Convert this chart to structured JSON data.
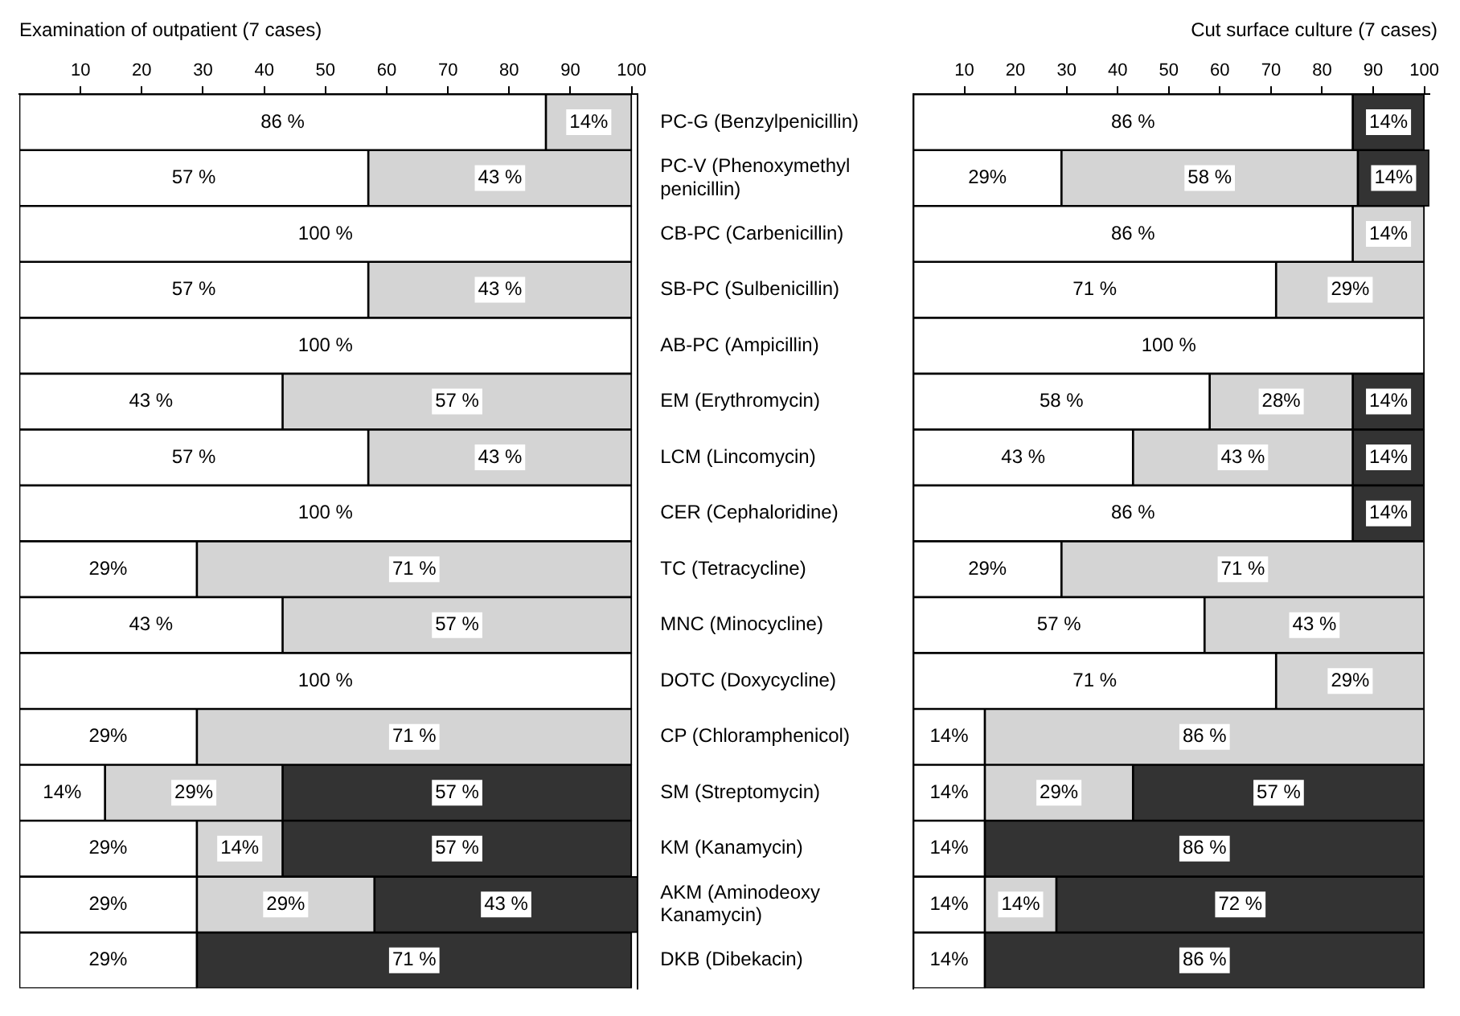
{
  "chart_data": [
    {
      "type": "bar",
      "orientation": "horizontal",
      "stacked": true,
      "title": "Examination of outpatient (7 cases)",
      "categories": [
        "PC-G (Benzylpenicillin)",
        "PC-V (Phenoxymethyl penicillin)",
        "CB-PC (Carbenicillin)",
        "SB-PC (Sulbenicillin)",
        "AB-PC (Ampicillin)",
        "EM (Erythromycin)",
        "LCM (Lincomycin)",
        "CER (Cephaloridine)",
        "TC (Tetracycline)",
        "MNC (Minocycline)",
        "DOTC (Doxycycline)",
        "CP (Chloramphenicol)",
        "SM (Streptomycin)",
        "KM (Kanamycin)",
        "AKM (Aminodeoxy Kanamycin)",
        "DKB (Dibekacin)"
      ],
      "series": [
        {
          "color": "#ffffff",
          "values": [
            86,
            57,
            100,
            57,
            100,
            43,
            57,
            100,
            29,
            43,
            100,
            29,
            14,
            29,
            29,
            29
          ],
          "value_labels": [
            "86 %",
            "57 %",
            "100 %",
            "57 %",
            "100 %",
            "43 %",
            "57 %",
            "100 %",
            "29%",
            "43 %",
            "100 %",
            "29%",
            "14%",
            "29%",
            "29%",
            "29%"
          ]
        },
        {
          "color": "#d4d4d4",
          "values": [
            14,
            43,
            0,
            43,
            0,
            57,
            43,
            0,
            71,
            57,
            0,
            71,
            29,
            14,
            29,
            0
          ],
          "value_labels": [
            "14%",
            "43 %",
            null,
            "43 %",
            null,
            "57 %",
            "43 %",
            null,
            "71 %",
            "57 %",
            null,
            "71 %",
            "29%",
            "14%",
            "29%",
            null
          ]
        },
        {
          "color": "#333333",
          "values": [
            0,
            0,
            0,
            0,
            0,
            0,
            0,
            0,
            0,
            0,
            0,
            0,
            57,
            57,
            43,
            71
          ],
          "value_labels": [
            null,
            null,
            null,
            null,
            null,
            null,
            null,
            null,
            null,
            null,
            null,
            null,
            "57 %",
            "57 %",
            "43 %",
            "71 %"
          ]
        }
      ],
      "xlim": [
        0,
        101
      ],
      "xticks": [
        10,
        20,
        30,
        40,
        50,
        60,
        70,
        80,
        90,
        100
      ],
      "grid": false
    },
    {
      "type": "bar",
      "orientation": "horizontal",
      "stacked": true,
      "title": "Cut surface culture (7 cases)",
      "categories": [
        null,
        null,
        null,
        null,
        null,
        null,
        null,
        null,
        null,
        null,
        null,
        null,
        null,
        null,
        null,
        null
      ],
      "series": [
        {
          "color": "#ffffff",
          "values": [
            86,
            29,
            86,
            71,
            100,
            58,
            43,
            86,
            29,
            57,
            71,
            14,
            14,
            14,
            14,
            14
          ],
          "value_labels": [
            "86 %",
            "29%",
            "86 %",
            "71 %",
            "100 %",
            "58 %",
            "43 %",
            "86 %",
            "29%",
            "57 %",
            "71 %",
            "14%",
            "14%",
            "14%",
            "14%",
            "14%"
          ]
        },
        {
          "color": "#d4d4d4",
          "values": [
            0,
            58,
            14,
            29,
            0,
            28,
            43,
            0,
            71,
            43,
            29,
            86,
            29,
            0,
            14,
            0
          ],
          "value_labels": [
            null,
            "58 %",
            "14%",
            "29%",
            null,
            "28%",
            "43 %",
            null,
            "71 %",
            "43 %",
            "29%",
            "86 %",
            "29%",
            null,
            "14%",
            null
          ]
        },
        {
          "color": "#333333",
          "values": [
            14,
            14,
            0,
            0,
            0,
            14,
            14,
            14,
            0,
            0,
            0,
            0,
            57,
            86,
            72,
            86
          ],
          "value_labels": [
            "14%",
            "14%",
            null,
            null,
            null,
            "14%",
            "14%",
            "14%",
            null,
            null,
            null,
            null,
            "57 %",
            "86 %",
            "72 %",
            "86 %"
          ]
        }
      ],
      "xlim": [
        0,
        101
      ],
      "xticks": [
        10,
        20,
        30,
        40,
        50,
        60,
        70,
        80,
        90,
        100
      ],
      "grid": false
    }
  ]
}
